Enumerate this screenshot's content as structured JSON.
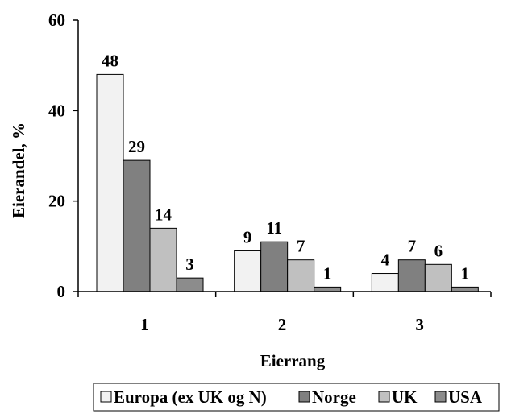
{
  "chart_data": {
    "type": "bar",
    "title": "",
    "xlabel": "Eierrang",
    "ylabel": "Eierandel, %",
    "ylim": [
      0,
      60
    ],
    "yticks": [
      0,
      20,
      40,
      60
    ],
    "categories": [
      "1",
      "2",
      "3"
    ],
    "series": [
      {
        "name": "Europa (ex UK og N)",
        "color": "#f2f2f2",
        "values": [
          48,
          9,
          4
        ]
      },
      {
        "name": "Norge",
        "color": "#808080",
        "values": [
          29,
          11,
          7
        ]
      },
      {
        "name": "UK",
        "color": "#c0c0c0",
        "values": [
          14,
          7,
          6
        ]
      },
      {
        "name": "USA",
        "color": "#8c8c8c",
        "values": [
          3,
          1,
          1
        ]
      }
    ],
    "grid": false,
    "legend_position": "bottom"
  }
}
